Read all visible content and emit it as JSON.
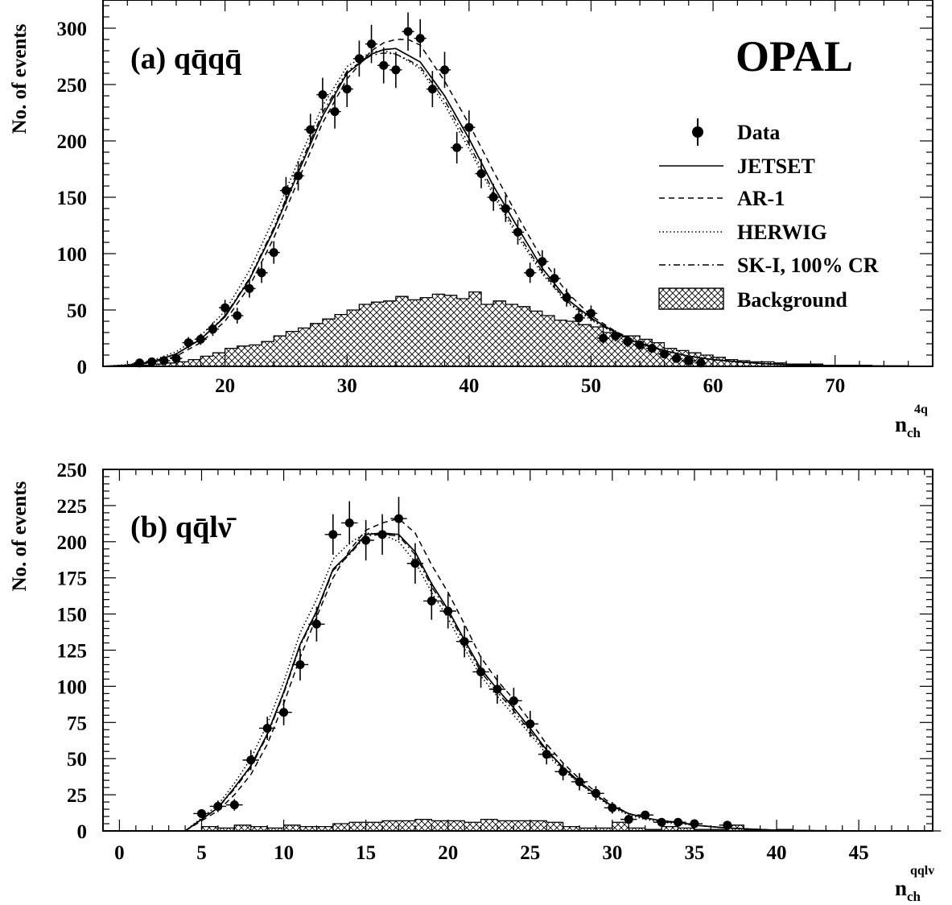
{
  "figure": {
    "experiment": "OPAL",
    "legend": {
      "data": "Data",
      "jetset": "JETSET",
      "ar1": "AR-1",
      "herwig": "HERWIG",
      "ski": "SK-I, 100% CR",
      "background": "Background"
    }
  },
  "chart_data": [
    {
      "type": "line",
      "panel": "(a)",
      "title_prefix": "(a) ",
      "title_math": "qq̄qq̄",
      "ylabel": "No. of events",
      "xlabel_base": "n",
      "xlabel_sub": "ch",
      "xlabel_sup": "4q",
      "xlim": [
        10,
        78
      ],
      "ylim": [
        0,
        325
      ],
      "xticks": [
        20,
        30,
        40,
        50,
        60,
        70
      ],
      "yticks": [
        0,
        50,
        100,
        150,
        200,
        250,
        300
      ],
      "legend_position": "right",
      "data": {
        "name": "Data",
        "x": [
          13,
          14,
          15,
          16,
          17,
          18,
          19,
          20,
          21,
          22,
          23,
          24,
          25,
          26,
          27,
          28,
          29,
          30,
          31,
          32,
          33,
          34,
          35,
          36,
          37,
          38,
          39,
          40,
          41,
          42,
          43,
          44,
          45,
          46,
          47,
          48,
          49,
          50,
          51,
          52,
          53,
          54,
          55,
          56,
          57,
          58,
          59
        ],
        "y": [
          3,
          4,
          5,
          7,
          21,
          24,
          33,
          52,
          45,
          69,
          83,
          101,
          156,
          169,
          210,
          241,
          226,
          246,
          273,
          286,
          267,
          263,
          297,
          291,
          246,
          263,
          194,
          212,
          171,
          150,
          140,
          119,
          83,
          93,
          78,
          61,
          43,
          47,
          25,
          27,
          22,
          19,
          16,
          11,
          7,
          5,
          3
        ],
        "yerr": [
          2,
          2,
          2,
          3,
          5,
          5,
          6,
          7,
          7,
          8,
          9,
          10,
          12,
          13,
          14,
          15,
          15,
          16,
          16,
          17,
          16,
          16,
          17,
          17,
          16,
          16,
          14,
          15,
          13,
          12,
          12,
          11,
          9,
          10,
          9,
          8,
          7,
          7,
          5,
          5,
          5,
          4,
          4,
          3,
          3,
          2,
          2
        ]
      },
      "jetset": {
        "name": "JETSET",
        "x": [
          10,
          12,
          14,
          16,
          18,
          20,
          22,
          24,
          26,
          28,
          30,
          32,
          33,
          34,
          35,
          36,
          38,
          40,
          42,
          44,
          46,
          48,
          50,
          52,
          54,
          56,
          58,
          60,
          62,
          64,
          66,
          68,
          70,
          72,
          74,
          76,
          78
        ],
        "y": [
          0,
          1,
          4,
          11,
          24,
          44,
          77,
          121,
          172,
          222,
          260,
          277,
          281,
          282,
          276,
          270,
          240,
          202,
          160,
          123,
          87,
          60,
          43,
          30,
          20,
          14,
          9,
          6,
          4,
          2.5,
          1.5,
          1,
          0.6,
          0.3,
          0.2,
          0.1,
          0
        ]
      },
      "ar1": {
        "name": "AR-1",
        "x": [
          10,
          12,
          14,
          16,
          18,
          20,
          22,
          24,
          26,
          28,
          30,
          32,
          33,
          34,
          35,
          36,
          38,
          40,
          42,
          44,
          46,
          48,
          50,
          52,
          54,
          56,
          58,
          60,
          62,
          64,
          66,
          68,
          70,
          72,
          74,
          76,
          78
        ],
        "y": [
          0,
          1,
          3,
          9,
          21,
          40,
          71,
          114,
          165,
          216,
          255,
          280,
          287,
          290,
          290,
          285,
          253,
          215,
          173,
          133,
          95,
          66,
          45,
          31,
          21,
          14,
          9,
          6,
          4,
          2.5,
          1.5,
          1,
          0.6,
          0.3,
          0.2,
          0.1,
          0
        ]
      },
      "herwig": {
        "name": "HERWIG",
        "x": [
          10,
          12,
          14,
          16,
          18,
          20,
          22,
          24,
          26,
          28,
          30,
          32,
          33,
          34,
          35,
          36,
          38,
          40,
          42,
          44,
          46,
          48,
          50,
          52,
          54,
          56,
          58,
          60,
          62,
          64,
          66,
          68,
          70,
          72,
          74,
          76,
          78
        ],
        "y": [
          0,
          1.5,
          5,
          13,
          27,
          49,
          85,
          131,
          182,
          231,
          266,
          279,
          280,
          277,
          271,
          264,
          232,
          193,
          152,
          115,
          82,
          57,
          41,
          29,
          20,
          14,
          9,
          6,
          4,
          2.5,
          1.5,
          1,
          0.6,
          0.3,
          0.2,
          0.1,
          0
        ]
      },
      "ski": {
        "name": "SK-I, 100% CR",
        "x": [
          10,
          12,
          14,
          16,
          18,
          20,
          22,
          24,
          26,
          28,
          30,
          32,
          33,
          34,
          35,
          36,
          38,
          40,
          42,
          44,
          46,
          48,
          50,
          52,
          54,
          56,
          58,
          60,
          62,
          64,
          66,
          68,
          70,
          72,
          74,
          76,
          78
        ],
        "y": [
          0,
          1,
          4,
          11,
          24,
          45,
          78,
          123,
          175,
          225,
          262,
          276,
          278,
          277,
          272,
          266,
          236,
          197,
          155,
          118,
          84,
          58,
          42,
          29,
          20,
          14,
          9,
          6,
          4,
          2.5,
          1.5,
          1,
          0.6,
          0.3,
          0.2,
          0.1,
          0
        ]
      },
      "background": {
        "name": "Background",
        "edges_start": 10,
        "bin_width": 1,
        "values": [
          0,
          0,
          1,
          1,
          2,
          3,
          4,
          6,
          9,
          12,
          16,
          18,
          19,
          22,
          27,
          31,
          34,
          38,
          42,
          46,
          50,
          55,
          57,
          58,
          62,
          59,
          61,
          64,
          63,
          60,
          66,
          55,
          58,
          55,
          53,
          49,
          45,
          41,
          40,
          37,
          35,
          30,
          27,
          27,
          24,
          21,
          16,
          14,
          12,
          10,
          8,
          6,
          5,
          4,
          4,
          3,
          2,
          2,
          2,
          1,
          1,
          1,
          1,
          0.5,
          0.5,
          0.5,
          0,
          0
        ]
      }
    },
    {
      "type": "line",
      "panel": "(b)",
      "title_prefix": "(b) ",
      "title_math": "qq̄lν̄",
      "ylabel": "No. of events",
      "xlabel_base": "n",
      "xlabel_sub": "ch",
      "xlabel_sup": "qqlv",
      "xlim": [
        -1,
        49.5
      ],
      "ylim": [
        0,
        250
      ],
      "xticks": [
        0,
        5,
        10,
        15,
        20,
        25,
        30,
        35,
        40,
        45
      ],
      "yticks": [
        0,
        25,
        50,
        75,
        100,
        125,
        150,
        175,
        200,
        225,
        250
      ],
      "data": {
        "name": "Data",
        "x": [
          5,
          6,
          7,
          8,
          9,
          10,
          11,
          12,
          13,
          14,
          15,
          16,
          17,
          18,
          19,
          20,
          21,
          22,
          23,
          24,
          25,
          26,
          27,
          28,
          29,
          30,
          31,
          32,
          33,
          34,
          35,
          37
        ],
        "y": [
          12,
          17,
          18,
          49,
          71,
          82,
          115,
          143,
          205,
          213,
          201,
          205,
          216,
          185,
          159,
          152,
          131,
          110,
          98,
          90,
          74,
          53,
          41,
          34,
          26,
          16,
          8,
          11,
          6,
          6,
          5,
          4
        ],
        "yerr": [
          3,
          4,
          4,
          7,
          8,
          9,
          11,
          12,
          14,
          15,
          14,
          14,
          15,
          14,
          13,
          12,
          11,
          11,
          10,
          9,
          9,
          7,
          6,
          6,
          5,
          4,
          3,
          3,
          2,
          2,
          2,
          2
        ]
      },
      "jetset": {
        "name": "JETSET",
        "x": [
          4,
          5,
          6,
          7,
          8,
          9,
          10,
          11,
          12,
          13,
          14,
          15,
          16,
          17,
          18,
          19,
          20,
          21,
          22,
          23,
          24,
          25,
          26,
          27,
          28,
          29,
          30,
          31,
          32,
          33,
          34,
          35,
          36,
          37,
          38,
          39,
          40,
          42,
          45,
          48
        ],
        "y": [
          0,
          8,
          16,
          30,
          45,
          67,
          96,
          129,
          152,
          181,
          192,
          205,
          206,
          205,
          193,
          171,
          153,
          132,
          112,
          98,
          85,
          71,
          56,
          44,
          34,
          25,
          17,
          12,
          9,
          7,
          6,
          4,
          3,
          2,
          1.5,
          1,
          0.5,
          0.2,
          0.1,
          0
        ]
      },
      "ar1": {
        "name": "AR-1",
        "x": [
          4,
          5,
          6,
          7,
          8,
          9,
          10,
          11,
          12,
          13,
          14,
          15,
          16,
          17,
          18,
          19,
          20,
          21,
          22,
          23,
          24,
          25,
          26,
          27,
          28,
          29,
          30,
          31,
          32,
          33,
          34,
          35,
          36,
          37,
          38,
          39,
          40,
          42,
          45,
          48
        ],
        "y": [
          0,
          7,
          14,
          25,
          39,
          60,
          88,
          120,
          148,
          175,
          194,
          208,
          213,
          216,
          206,
          184,
          165,
          143,
          120,
          104,
          91,
          76,
          60,
          47,
          36,
          27,
          18,
          12,
          9,
          7,
          6,
          4,
          3,
          2,
          1.5,
          1,
          0.5,
          0.2,
          0.1,
          0
        ]
      },
      "herwig": {
        "name": "HERWIG",
        "x": [
          4,
          5,
          6,
          7,
          8,
          9,
          10,
          11,
          12,
          13,
          14,
          15,
          16,
          17,
          18,
          19,
          20,
          21,
          22,
          23,
          24,
          25,
          26,
          27,
          28,
          29,
          30,
          31,
          32,
          33,
          34,
          35,
          36,
          37,
          38,
          39,
          40,
          42,
          45,
          48
        ],
        "y": [
          0,
          9,
          18,
          33,
          50,
          74,
          103,
          137,
          160,
          188,
          199,
          206,
          205,
          200,
          186,
          165,
          147,
          126,
          107,
          93,
          80,
          67,
          53,
          42,
          33,
          24,
          16,
          11,
          8,
          6,
          5,
          4,
          3,
          2,
          1.5,
          1,
          0.5,
          0.2,
          0.1,
          0
        ]
      },
      "ski": {
        "name": "SK-I, 100% CR",
        "x": [
          4,
          5,
          6,
          7,
          8,
          9,
          10,
          11,
          12,
          13,
          14,
          15,
          16,
          17,
          18,
          19,
          20,
          21,
          22,
          23,
          24,
          25,
          26,
          27,
          28,
          29,
          30,
          31,
          32,
          33,
          34,
          35,
          36,
          37,
          38,
          39,
          40,
          42,
          45,
          48
        ],
        "y": [
          0,
          8,
          16,
          29,
          44,
          66,
          95,
          128,
          151,
          180,
          191,
          204,
          205,
          204,
          191,
          169,
          151,
          130,
          110,
          96,
          83,
          69,
          55,
          43,
          33,
          24,
          17,
          12,
          9,
          7,
          6,
          4,
          3,
          2,
          1.5,
          1,
          0.5,
          0.2,
          0.1,
          0
        ]
      },
      "background": {
        "name": "Background",
        "edges_start": -1,
        "bin_width": 1,
        "values": [
          0,
          0,
          0,
          0,
          0,
          0,
          3,
          2,
          4,
          3,
          2,
          4,
          3,
          3,
          5,
          6,
          6,
          7,
          7,
          8,
          7,
          7,
          6,
          8,
          7,
          7,
          7,
          6,
          3,
          2,
          2,
          6,
          2,
          1,
          3,
          2,
          1,
          1,
          4,
          1,
          0,
          1,
          0,
          0,
          0,
          0,
          0,
          0,
          0,
          0,
          0
        ]
      }
    }
  ]
}
